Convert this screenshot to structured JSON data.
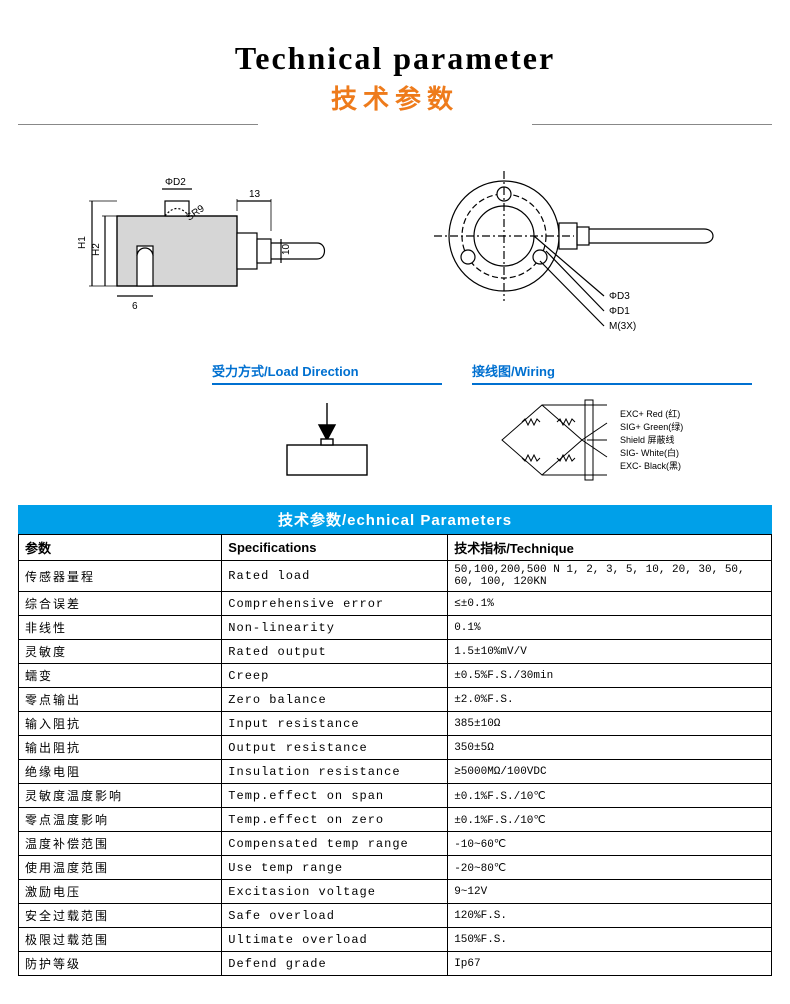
{
  "header": {
    "title": "Technical parameter",
    "subtitle": "技术参数"
  },
  "diagram_side": {
    "labels": [
      "H1",
      "H2",
      "6",
      "ΦD2",
      "SR9",
      "13",
      "10"
    ]
  },
  "diagram_top": {
    "labels": [
      "ΦD3",
      "ΦD1",
      "M(3X)"
    ]
  },
  "load_section": {
    "title": "受力方式/Load Direction"
  },
  "wiring_section": {
    "title": "接线图/Wiring",
    "lines": [
      "EXC+ Red  (红)",
      "SIG+ Green(绿)",
      "Shield  屏蔽线",
      "SIG- White(白)",
      "EXC- Black(黑)"
    ]
  },
  "table": {
    "banner": "技术参数/echnical Parameters",
    "head": [
      "参数",
      "Specifications",
      "技术指标/Technique"
    ],
    "rows": [
      [
        "传感器量程",
        "Rated load",
        "50,100,200,500 N 1, 2, 3, 5, 10, 20, 30, 50, 60, 100, 120KN"
      ],
      [
        "综合误差",
        "Comprehensive error",
        "≤±0.1%"
      ],
      [
        "非线性",
        "Non-linearity",
        "0.1%"
      ],
      [
        "灵敏度",
        "Rated output",
        "1.5±10%mV/V"
      ],
      [
        "蠕变",
        "Creep",
        "±0.5%F.S./30min"
      ],
      [
        "零点输出",
        "Zero balance",
        "±2.0%F.S."
      ],
      [
        "输入阻抗",
        "Input resistance",
        "385±10Ω"
      ],
      [
        "输出阻抗",
        "Output resistance",
        "350±5Ω"
      ],
      [
        "绝缘电阻",
        "Insulation resistance",
        "≥5000MΩ/100VDC"
      ],
      [
        "灵敏度温度影响",
        "Temp.effect on span",
        "±0.1%F.S./10℃"
      ],
      [
        "零点温度影响",
        "Temp.effect on zero",
        "±0.1%F.S./10℃"
      ],
      [
        "温度补偿范围",
        "Compensated temp range",
        "-10~60℃"
      ],
      [
        "使用温度范围",
        "Use temp range",
        "-20~80℃"
      ],
      [
        "激励电压",
        "Excitasion voltage",
        "9~12V"
      ],
      [
        "安全过载范围",
        "Safe overload",
        "120%F.S."
      ],
      [
        "极限过载范围",
        "Ultimate overload",
        "150%F.S."
      ],
      [
        "防护等级",
        "Defend grade",
        "Ip67"
      ]
    ]
  },
  "colors": {
    "accent": "#ee7b1b",
    "blue": "#00a0e9",
    "link_blue": "#0070d0"
  }
}
